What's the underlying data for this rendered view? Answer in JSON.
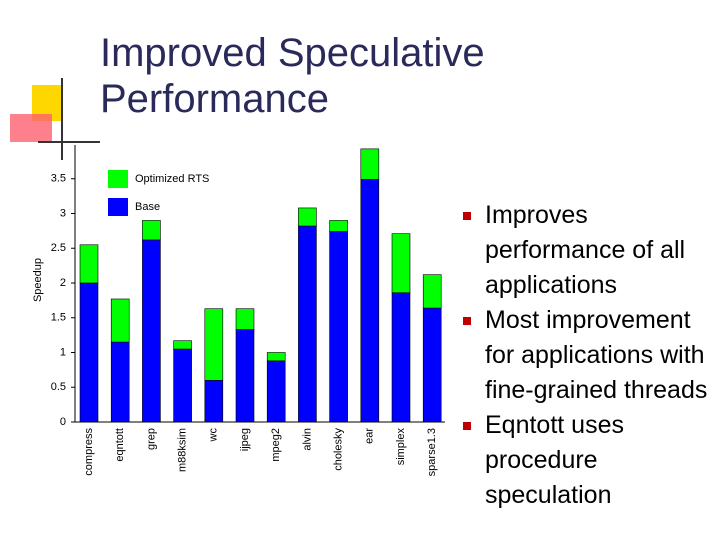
{
  "title": "Improved Speculative Performance",
  "bullets": [
    "Improves performance of all applications",
    "Most improvement for applications with fine-grained threads",
    "Eqntott uses procedure speculation"
  ],
  "chart_data": {
    "type": "stacked_bar",
    "y_label": "Speedup",
    "categories": [
      "compress",
      "eqntott",
      "grep",
      "m88ksim",
      "wc",
      "ijpeg",
      "mpeg2",
      "alvin",
      "cholesky",
      "ear",
      "simplex",
      "sparse1.3"
    ],
    "series": [
      {
        "name": "Base",
        "color": "#0000ff",
        "values": [
          2.0,
          1.15,
          2.62,
          1.05,
          0.6,
          1.33,
          0.88,
          2.82,
          2.74,
          3.49,
          1.86,
          1.64
        ]
      },
      {
        "name": "Optimized RTS",
        "color": "#00ff00",
        "values": [
          0.55,
          0.62,
          0.28,
          0.12,
          1.03,
          0.3,
          0.12,
          0.26,
          0.16,
          0.44,
          0.85,
          0.48
        ]
      }
    ],
    "ylim": [
      0,
      4
    ],
    "yticks": [
      0,
      0.5,
      1,
      1.5,
      2,
      2.5,
      3,
      3.5
    ]
  }
}
